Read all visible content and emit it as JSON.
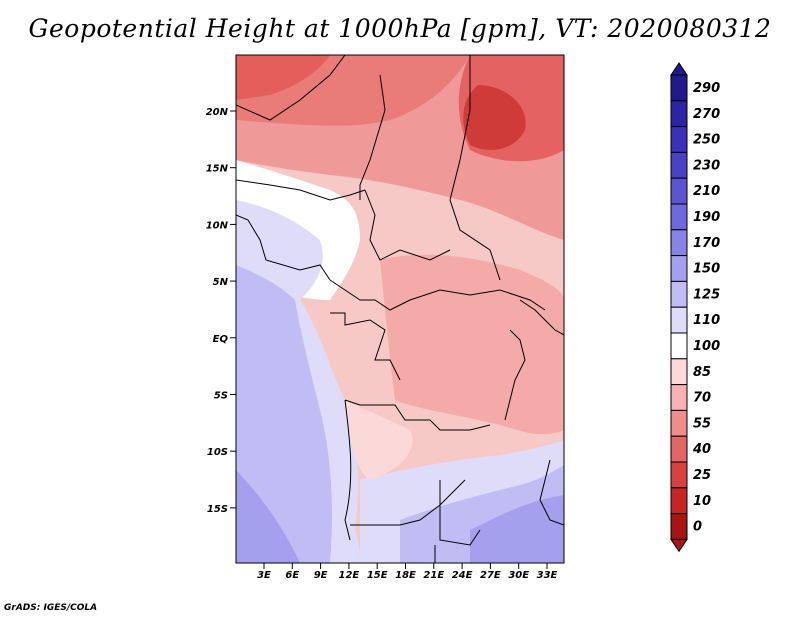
{
  "title": "Geopotential Height at 1000hPa [gpm], VT: 2020080312",
  "credit": "GrADS: IGES/COLA",
  "map": {
    "lon_labels": [
      "3E",
      "6E",
      "9E",
      "12E",
      "15E",
      "18E",
      "21E",
      "24E",
      "27E",
      "30E",
      "33E"
    ],
    "lat_labels": [
      "20N",
      "15N",
      "10N",
      "5N",
      "EQ",
      "5S",
      "10S",
      "15S"
    ]
  },
  "colorbar": {
    "labels": [
      "290",
      "270",
      "250",
      "230",
      "210",
      "190",
      "170",
      "150",
      "125",
      "110",
      "100",
      "85",
      "70",
      "55",
      "40",
      "25",
      "10",
      "0"
    ],
    "colors": [
      "#221a8c",
      "#2c23a6",
      "#3a31b8",
      "#4a42c6",
      "#5b55d2",
      "#6e69dc",
      "#8883e6",
      "#a4a0ee",
      "#c0bdf4",
      "#dedcf9",
      "#ffffff",
      "#fcd9d9",
      "#f7b3b3",
      "#ef8d8d",
      "#e46565",
      "#d94040",
      "#c82424",
      "#a81414"
    ]
  }
}
